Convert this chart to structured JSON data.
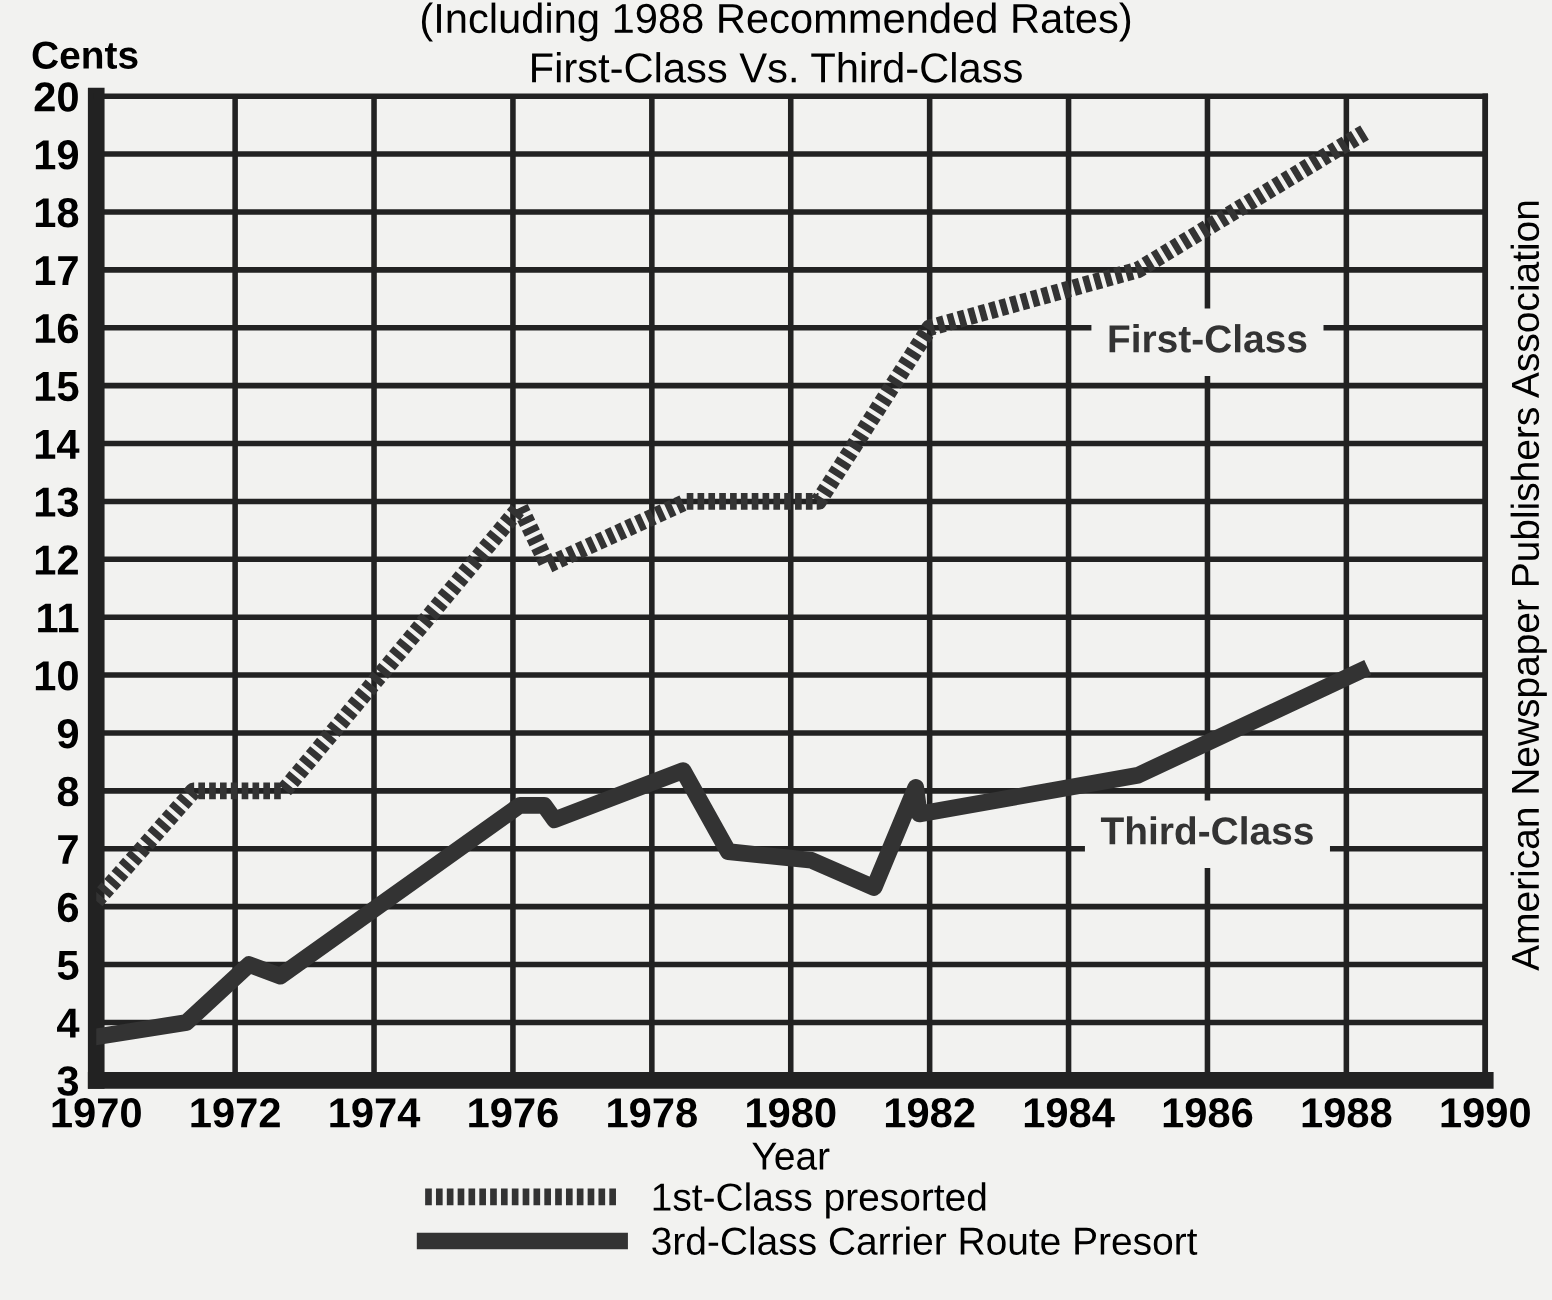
{
  "chart_data": {
    "type": "line",
    "title": "(Including 1988 Recommended Rates)",
    "subtitle": "First-Class Vs. Third-Class",
    "xlabel": "Year",
    "ylabel": "Cents",
    "xlim": [
      1970,
      1990
    ],
    "xticks": [
      1970,
      1972,
      1974,
      1976,
      1978,
      1980,
      1982,
      1984,
      1986,
      1988,
      1990
    ],
    "ylim": [
      3,
      20
    ],
    "yticks": [
      3,
      4,
      5,
      6,
      7,
      8,
      9,
      10,
      11,
      12,
      13,
      14,
      15,
      16,
      17,
      18,
      19,
      20
    ],
    "grid": true,
    "legend": "bottom",
    "series": [
      {
        "name": "1st-Class presorted",
        "color": "#333333",
        "line_style": "dotted",
        "x": [
          1970,
          1971.4,
          1972.7,
          1976.1,
          1976.5,
          1978.5,
          1980.4,
          1982,
          1985,
          1988.3
        ],
        "values": [
          6.1,
          8,
          8,
          12.9,
          11.9,
          13,
          13,
          16,
          17,
          19.4
        ]
      },
      {
        "name": "3rd-Class Carrier Route Presort",
        "color": "#333333",
        "line_style": "solid",
        "x": [
          1970,
          1971.3,
          1972.2,
          1972.65,
          1976.1,
          1976.45,
          1976.6,
          1978.45,
          1979.1,
          1980.3,
          1981.2,
          1981.8,
          1981.85,
          1985,
          1988.2
        ],
        "values": [
          3.75,
          4,
          5,
          4.8,
          7.75,
          7.75,
          7.5,
          8.35,
          6.95,
          6.8,
          6.33,
          8.06,
          7.6,
          8.27,
          10.07
        ]
      }
    ],
    "annotations": [
      "First-Class",
      "Third-Class",
      "American Newspaper Publishers Association"
    ]
  }
}
